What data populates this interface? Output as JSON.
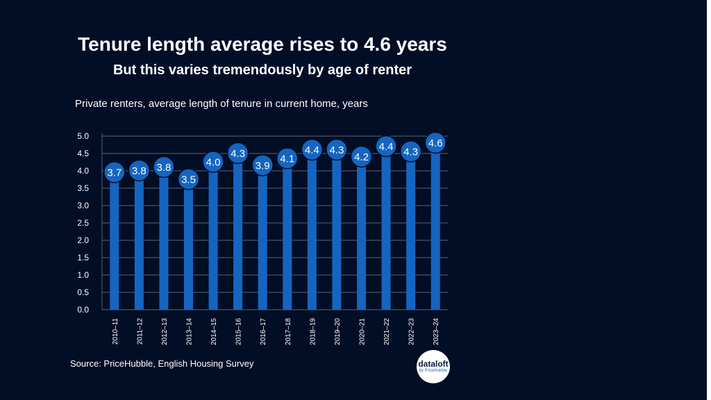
{
  "header": {
    "title": "Tenure length average rises to 4.6 years",
    "subtitle": "But this varies tremendously by age of renter"
  },
  "chart_caption": "Private renters, average length of tenure in current home, years",
  "source": "Source: PriceHubble, English Housing Survey",
  "logo": {
    "name": "dataloft",
    "tagline": "by PriceHubble"
  },
  "colors": {
    "background": "#020d26",
    "bar": "#1565c0",
    "bubble": "#1565c0",
    "text": "#ffffff",
    "grid": "#5a6478"
  },
  "chart_data": {
    "type": "bar",
    "categories": [
      "2010–11",
      "2011–12",
      "2012–13",
      "2013–14",
      "2014–15",
      "2015–16",
      "2016–17",
      "2017–18",
      "2018–19",
      "2019–20",
      "2020–21",
      "2021–22",
      "2022–23",
      "2023–24"
    ],
    "values": [
      3.7,
      3.75,
      3.85,
      3.5,
      4.0,
      4.25,
      3.9,
      4.1,
      4.35,
      4.35,
      4.15,
      4.45,
      4.3,
      4.55
    ],
    "data_labels": [
      "3.7",
      "3.8",
      "3.8",
      "3.5",
      "4.0",
      "4.3",
      "3.9",
      "4.1",
      "4.4",
      "4.3",
      "4.2",
      "4.4",
      "4.3",
      "4.6"
    ],
    "y_ticks": [
      "0.0",
      "0.5",
      "1.0",
      "1.5",
      "2.0",
      "2.5",
      "3.0",
      "3.5",
      "4.0",
      "4.5",
      "5.0"
    ],
    "ylim": [
      0,
      5
    ],
    "grid": true,
    "legend": "none"
  }
}
